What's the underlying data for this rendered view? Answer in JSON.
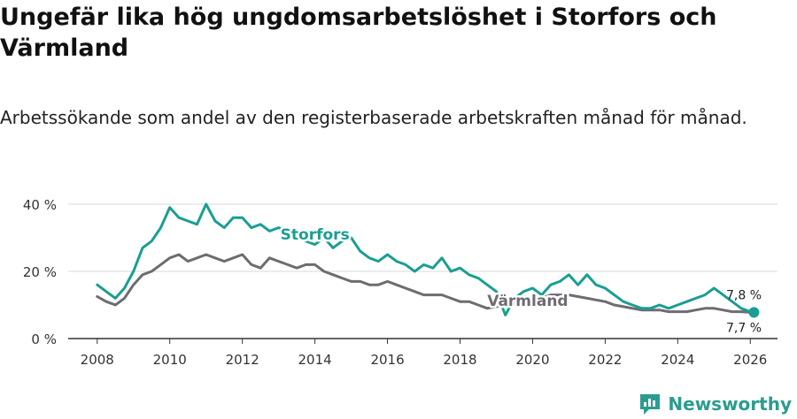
{
  "title": "Ungefär lika hög ungdomsarbetslöshet i Storfors och Värmland",
  "subtitle": "Arbetssökande som andel av den registerbaserade arbetskraften månad för månad.",
  "brand": "Newsworthy",
  "colors": {
    "storfors": "#1a9e92",
    "varmland": "#6e6b72",
    "grid": "#d9d9d9",
    "axis": "#333333"
  },
  "chart_data": {
    "type": "line",
    "title": "Ungefär lika hög ungdomsarbetslöshet i Storfors och Värmland",
    "xlabel": "",
    "ylabel": "",
    "xlim": [
      2007.2,
      2026.75
    ],
    "ylim": [
      0,
      40
    ],
    "x_ticks": [
      2008,
      2010,
      2012,
      2014,
      2016,
      2018,
      2020,
      2022,
      2024,
      2026
    ],
    "x_tick_labels": [
      "2008",
      "2010",
      "2012",
      "2014",
      "2016",
      "2018",
      "2020",
      "2022",
      "2024",
      "2026"
    ],
    "y_ticks": [
      0,
      20,
      40
    ],
    "y_tick_labels": [
      "0 %",
      "20 %",
      "40 %"
    ],
    "grid": true,
    "series": [
      {
        "name": "Storfors",
        "color": "#1a9e92",
        "end_label": "7,8 %",
        "x": [
          2008.0,
          2008.25,
          2008.5,
          2008.75,
          2009.0,
          2009.25,
          2009.5,
          2009.75,
          2010.0,
          2010.25,
          2010.5,
          2010.75,
          2011.0,
          2011.25,
          2011.5,
          2011.75,
          2012.0,
          2012.25,
          2012.5,
          2012.75,
          2013.0,
          2013.25,
          2013.5,
          2013.75,
          2014.0,
          2014.25,
          2014.5,
          2014.75,
          2015.0,
          2015.25,
          2015.5,
          2015.75,
          2016.0,
          2016.25,
          2016.5,
          2016.75,
          2017.0,
          2017.25,
          2017.5,
          2017.75,
          2018.0,
          2018.25,
          2018.5,
          2018.75,
          2019.0,
          2019.25,
          2019.5,
          2019.75,
          2020.0,
          2020.25,
          2020.5,
          2020.75,
          2021.0,
          2021.25,
          2021.5,
          2021.75,
          2022.0,
          2022.25,
          2022.5,
          2022.75,
          2023.0,
          2023.25,
          2023.5,
          2023.75,
          2024.0,
          2024.25,
          2024.5,
          2024.75,
          2025.0,
          2025.25,
          2025.5,
          2025.75,
          2026.0,
          2026.1
        ],
        "values": [
          16,
          14,
          12,
          15,
          20,
          27,
          29,
          33,
          39,
          36,
          35,
          34,
          40,
          35,
          33,
          36,
          36,
          33,
          34,
          32,
          33,
          32,
          30,
          29,
          28,
          30,
          27,
          29,
          30,
          26,
          24,
          23,
          25,
          23,
          22,
          20,
          22,
          21,
          24,
          20,
          21,
          19,
          18,
          16,
          14,
          7,
          12,
          14,
          15,
          13,
          16,
          17,
          19,
          16,
          19,
          16,
          15,
          13,
          11,
          10,
          9,
          9,
          10,
          9,
          10,
          11,
          12,
          13,
          15,
          13,
          11,
          9,
          8,
          7.8
        ]
      },
      {
        "name": "Värmland",
        "color": "#6e6b72",
        "end_label": "7,7 %",
        "x": [
          2008.0,
          2008.25,
          2008.5,
          2008.75,
          2009.0,
          2009.25,
          2009.5,
          2009.75,
          2010.0,
          2010.25,
          2010.5,
          2010.75,
          2011.0,
          2011.25,
          2011.5,
          2011.75,
          2012.0,
          2012.25,
          2012.5,
          2012.75,
          2013.0,
          2013.25,
          2013.5,
          2013.75,
          2014.0,
          2014.25,
          2014.5,
          2014.75,
          2015.0,
          2015.25,
          2015.5,
          2015.75,
          2016.0,
          2016.25,
          2016.5,
          2016.75,
          2017.0,
          2017.25,
          2017.5,
          2017.75,
          2018.0,
          2018.25,
          2018.5,
          2018.75,
          2019.0,
          2019.25,
          2019.5,
          2019.75,
          2020.0,
          2020.25,
          2020.5,
          2020.75,
          2021.0,
          2021.25,
          2021.5,
          2021.75,
          2022.0,
          2022.25,
          2022.5,
          2022.75,
          2023.0,
          2023.25,
          2023.5,
          2023.75,
          2024.0,
          2024.25,
          2024.5,
          2024.75,
          2025.0,
          2025.25,
          2025.5,
          2025.75,
          2026.0,
          2026.1
        ],
        "values": [
          12.5,
          11,
          10,
          12,
          16,
          19,
          20,
          22,
          24,
          25,
          23,
          24,
          25,
          24,
          23,
          24,
          25,
          22,
          21,
          24,
          23,
          22,
          21,
          22,
          22,
          20,
          19,
          18,
          17,
          17,
          16,
          16,
          17,
          16,
          15,
          14,
          13,
          13,
          13,
          12,
          11,
          11,
          10,
          9,
          9.5,
          10,
          10.5,
          11,
          12,
          12,
          13,
          13,
          13,
          12.5,
          12,
          11.5,
          11,
          10,
          9.5,
          9,
          8.5,
          8.5,
          8.5,
          8,
          8,
          8,
          8.5,
          9,
          9,
          8.5,
          8,
          8,
          7.8,
          7.7
        ]
      }
    ]
  }
}
